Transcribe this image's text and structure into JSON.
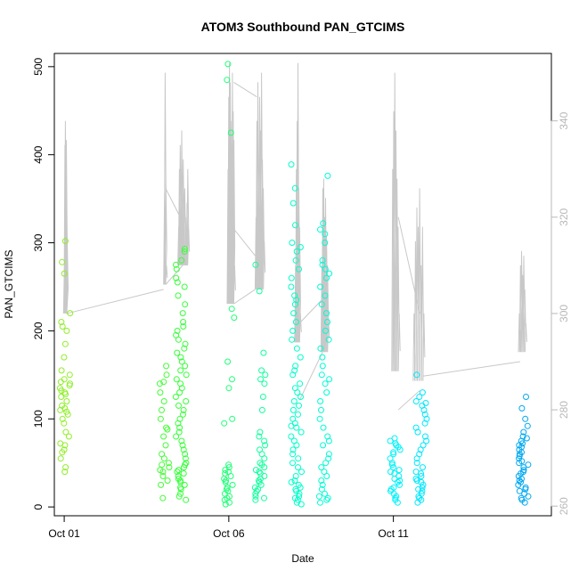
{
  "chart_data": {
    "type": "scatter",
    "title": "ATOM3 Southbound PAN_GTCIMS",
    "xlabel": "Date",
    "ylabel": "PAN_GTCIMS",
    "x_tick_labels": [
      "Oct 01",
      "Oct 06",
      "Oct 11"
    ],
    "x_tick_values": [
      1,
      6,
      11
    ],
    "xlim": [
      0.7,
      15.8
    ],
    "ylim": [
      -10,
      515
    ],
    "y_ticks": [
      0,
      100,
      200,
      300,
      400,
      500
    ],
    "y2lim": [
      258,
      354
    ],
    "y2_ticks": [
      260,
      280,
      300,
      320,
      340
    ],
    "grid": false,
    "legend": "none",
    "series": [
      {
        "kind": "points",
        "axis": "left",
        "color_scale": [
          "#90ee2a",
          "#38ff38",
          "#00ffc8",
          "#00f0ff",
          "#00a8f0"
        ],
        "clusters": [
          {
            "x": 1.02,
            "values": [
              40,
              45,
              55,
              62,
              65,
              70,
              72,
              80,
              85,
              95,
              100,
              105,
              108,
              110,
              112,
              115,
              120,
              125,
              128,
              130,
              132,
              135,
              138,
              140,
              142,
              145,
              150,
              155,
              170,
              185,
              200,
              205,
              210,
              220,
              265,
              278,
              302
            ]
          },
          {
            "x": 4.05,
            "values": [
              10,
              25,
              30,
              35,
              40,
              42,
              45,
              48,
              50,
              55,
              60,
              70,
              80,
              88,
              90,
              100,
              110,
              120,
              130,
              140,
              142,
              150,
              160
            ]
          },
          {
            "x": 4.55,
            "values": [
              8,
              12,
              15,
              20,
              22,
              25,
              28,
              30,
              32,
              35,
              38,
              40,
              42,
              45,
              48,
              50,
              55,
              60,
              65,
              70,
              75,
              80,
              85,
              90,
              95,
              100,
              105,
              110,
              115,
              120,
              125,
              130,
              135,
              140,
              145,
              150,
              155,
              160,
              165,
              170,
              175,
              180,
              185,
              190,
              195,
              200,
              205,
              210,
              220,
              230,
              240,
              250,
              255,
              260,
              270,
              275,
              280,
              290,
              293
            ]
          },
          {
            "x": 6.02,
            "values": [
              3,
              5,
              8,
              10,
              12,
              15,
              18,
              20,
              22,
              25,
              28,
              30,
              32,
              35,
              38,
              40,
              42,
              45,
              48,
              95,
              100,
              135,
              145,
              165,
              215,
              225,
              425,
              485,
              503
            ]
          },
          {
            "x": 6.95,
            "values": [
              8,
              10,
              12,
              15,
              18,
              20,
              22,
              25,
              28,
              30,
              32,
              35,
              38,
              40,
              42,
              45,
              48,
              50,
              55,
              60,
              65,
              70,
              75,
              80,
              85,
              110,
              125,
              140,
              145,
              150,
              155,
              175,
              245,
              275
            ]
          },
          {
            "x": 8.05,
            "values": [
              3,
              5,
              8,
              10,
              12,
              15,
              18,
              20,
              22,
              25,
              28,
              30,
              35,
              40,
              45,
              50,
              55,
              60,
              65,
              70,
              75,
              80,
              85,
              90,
              92,
              95,
              100,
              105,
              110,
              115,
              120,
              125,
              130,
              135,
              140,
              150,
              155,
              160,
              170,
              180,
              190,
              200,
              210,
              220,
              230,
              235,
              240,
              250,
              260,
              270,
              280,
              290,
              295,
              300,
              320,
              345,
              362,
              389
            ]
          },
          {
            "x": 8.9,
            "values": [
              5,
              8,
              10,
              12,
              15,
              20,
              25,
              30,
              35,
              40,
              45,
              50,
              55,
              60,
              70,
              75,
              80,
              90,
              100,
              110,
              120,
              130,
              140,
              145,
              150,
              160,
              170,
              180,
              190,
              200,
              210,
              220,
              230,
              240,
              250,
              260,
              265,
              270,
              275,
              280,
              300,
              310,
              315,
              322,
              376
            ]
          },
          {
            "x": 11.05,
            "values": [
              5,
              8,
              10,
              12,
              15,
              18,
              20,
              22,
              25,
              28,
              30,
              32,
              35,
              38,
              40,
              42,
              45,
              48,
              50,
              55,
              60,
              62,
              65,
              68,
              70,
              72,
              75,
              78
            ]
          },
          {
            "x": 11.85,
            "values": [
              5,
              8,
              10,
              12,
              15,
              18,
              20,
              22,
              25,
              28,
              30,
              32,
              35,
              38,
              40,
              45,
              50,
              55,
              60,
              65,
              70,
              75,
              80,
              85,
              90,
              95,
              100,
              105,
              110,
              115,
              118,
              120,
              125,
              130,
              150
            ]
          },
          {
            "x": 14.95,
            "values": [
              5,
              8,
              10,
              12,
              15,
              18,
              20,
              22,
              25,
              28,
              30,
              32,
              35,
              38,
              40,
              42,
              45,
              48,
              50,
              52,
              55,
              58,
              60,
              62,
              65,
              68,
              70,
              72,
              75,
              78,
              80,
              85,
              92,
              100,
              112,
              125
            ]
          }
        ]
      },
      {
        "kind": "line",
        "axis": "right",
        "color": "#c8c8c8",
        "spike_bursts": [
          {
            "x0": 0.98,
            "x1": 1.08,
            "base": 300,
            "peaks": [
              310,
              335,
              340,
              330,
              336,
              322,
              315,
              300
            ]
          },
          {
            "x0": 4.02,
            "x1": 4.08,
            "base": 306,
            "peaks": [
              325,
              350,
              328,
              310
            ]
          },
          {
            "x0": 4.45,
            "x1": 4.75,
            "base": 310,
            "peaks": [
              318,
              330,
              335,
              322,
              338,
              328,
              332,
              315,
              326,
              320,
              312,
              323,
              330,
              318
            ]
          },
          {
            "x0": 5.95,
            "x1": 6.15,
            "base": 302,
            "peaks": [
              330,
              345,
              352,
              348,
              340,
              335,
              350,
              342,
              336,
              310
            ]
          },
          {
            "x0": 6.8,
            "x1": 7.05,
            "base": 305,
            "peaks": [
              320,
              340,
              348,
              330,
              345,
              338,
              350,
              332,
              326,
              315
            ]
          },
          {
            "x0": 8.0,
            "x1": 8.15,
            "base": 294,
            "peaks": [
              310,
              330,
              340,
              352,
              326,
              318,
              300
            ]
          },
          {
            "x0": 8.8,
            "x1": 9.0,
            "base": 292,
            "peaks": [
              310,
              326,
              328,
              320,
              324,
              316,
              310,
              300
            ]
          },
          {
            "x0": 10.95,
            "x1": 11.15,
            "base": 288,
            "peaks": [
              330,
              342,
              350,
              338,
              328,
              318,
              300
            ]
          },
          {
            "x0": 11.6,
            "x1": 11.9,
            "base": 286,
            "peaks": [
              300,
              315,
              322,
              318,
              326,
              310,
              318,
              300
            ]
          },
          {
            "x0": 14.8,
            "x1": 15.0,
            "base": 292,
            "peaks": [
              300,
              310,
              313,
              308,
              312,
              305,
              298
            ]
          }
        ],
        "connectors": [
          [
            1.08,
            300,
            4.02,
            305
          ],
          [
            4.08,
            326,
            4.6,
            319
          ],
          [
            4.08,
            306,
            4.6,
            310
          ],
          [
            6.15,
            302,
            6.8,
            305
          ],
          [
            6.15,
            348,
            6.85,
            345
          ],
          [
            6.1,
            318,
            6.8,
            312
          ],
          [
            8.15,
            298,
            8.85,
            303
          ],
          [
            8.15,
            282,
            8.85,
            292
          ],
          [
            11.15,
            320,
            11.8,
            300
          ],
          [
            11.15,
            280,
            11.8,
            284
          ],
          [
            11.9,
            287,
            14.85,
            290
          ]
        ]
      }
    ]
  }
}
